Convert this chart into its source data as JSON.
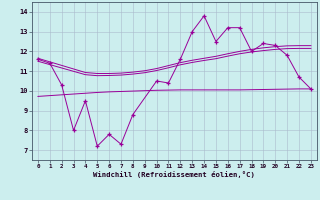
{
  "xlabel": "Windchill (Refroidissement éolien,°C)",
  "x": [
    0,
    1,
    2,
    3,
    4,
    5,
    6,
    7,
    8,
    9,
    10,
    11,
    12,
    13,
    14,
    15,
    16,
    17,
    18,
    19,
    20,
    21,
    22,
    23
  ],
  "windchill": [
    11.6,
    11.4,
    10.3,
    8.0,
    9.5,
    7.2,
    7.8,
    7.3,
    8.8,
    null,
    10.5,
    10.4,
    11.6,
    13.0,
    13.8,
    12.5,
    13.2,
    13.2,
    12.0,
    12.4,
    12.3,
    11.8,
    10.7,
    10.1
  ],
  "trend_top": [
    11.65,
    11.47,
    11.29,
    11.11,
    10.93,
    10.88,
    10.88,
    10.9,
    10.95,
    11.02,
    11.13,
    11.28,
    11.43,
    11.55,
    11.65,
    11.75,
    11.88,
    12.0,
    12.1,
    12.18,
    12.24,
    12.28,
    12.29,
    12.29
  ],
  "trend_mid": [
    11.5,
    11.33,
    11.16,
    10.99,
    10.82,
    10.77,
    10.78,
    10.8,
    10.85,
    10.92,
    11.03,
    11.17,
    11.32,
    11.44,
    11.54,
    11.63,
    11.76,
    11.88,
    11.97,
    12.04,
    12.1,
    12.14,
    12.15,
    12.15
  ],
  "trend_bot": [
    9.72,
    9.76,
    9.8,
    9.84,
    9.88,
    9.92,
    9.95,
    9.97,
    9.99,
    10.01,
    10.03,
    10.04,
    10.05,
    10.05,
    10.05,
    10.05,
    10.05,
    10.05,
    10.06,
    10.07,
    10.08,
    10.09,
    10.1,
    10.1
  ],
  "line_color": "#990099",
  "bg_color": "#cceeee",
  "grid_color": "#aabbcc",
  "ylim": [
    6.5,
    14.5
  ],
  "yticks": [
    7,
    8,
    9,
    10,
    11,
    12,
    13,
    14
  ],
  "xticks": [
    0,
    1,
    2,
    3,
    4,
    5,
    6,
    7,
    8,
    9,
    10,
    11,
    12,
    13,
    14,
    15,
    16,
    17,
    18,
    19,
    20,
    21,
    22,
    23
  ]
}
